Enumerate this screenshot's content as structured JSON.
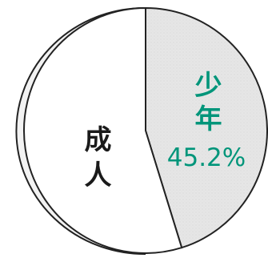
{
  "chart_data": {
    "type": "pie",
    "slices": [
      {
        "label": "少年",
        "value": 45.2,
        "value_text": "45.2%",
        "color": "#e4e4e4",
        "text_color": "#00957a"
      },
      {
        "label": "成人",
        "value": 54.8,
        "value_text": "",
        "color": "#ffffff",
        "text_color": "#1a1a1a"
      }
    ],
    "title": "",
    "legend": "none"
  }
}
